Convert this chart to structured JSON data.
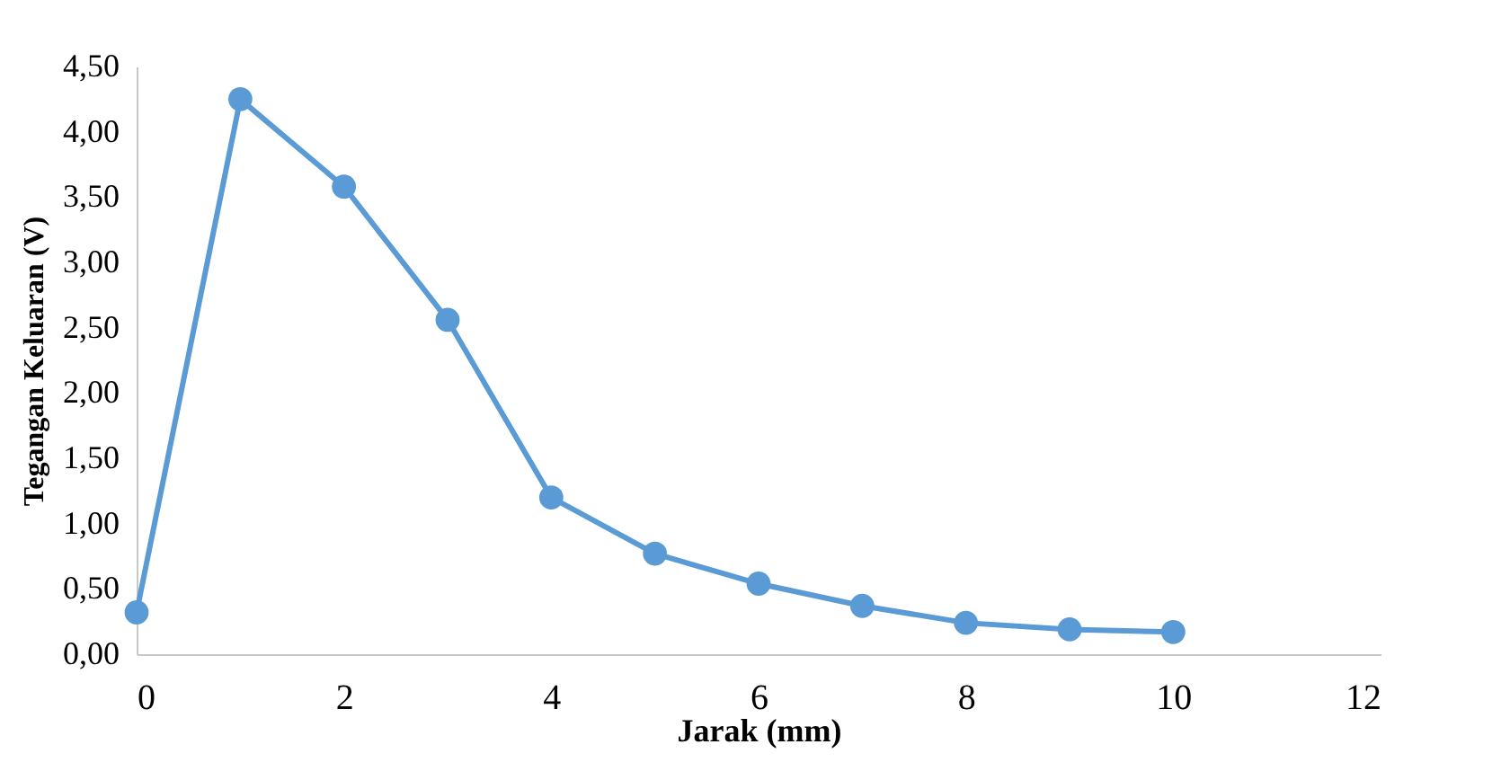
{
  "chart_data": {
    "type": "line",
    "xlabel": "Jarak (mm)",
    "ylabel": "Tegangan Keluaran (V)",
    "x": [
      0,
      1,
      2,
      3,
      4,
      5,
      6,
      7,
      8,
      9,
      10
    ],
    "series": [
      {
        "color": "#5b9bd5",
        "values": [
          0.32,
          4.25,
          3.58,
          2.56,
          1.2,
          0.77,
          0.54,
          0.37,
          0.24,
          0.19,
          0.17
        ]
      }
    ],
    "xlim": [
      0,
      12
    ],
    "xticks": [
      0,
      2,
      4,
      6,
      8,
      10,
      12
    ],
    "ylim": [
      0,
      4.5
    ],
    "yticks": [
      {
        "value": 0,
        "label": "0,00"
      },
      {
        "value": 0.5,
        "label": "0,50"
      },
      {
        "value": 1,
        "label": "1,00"
      },
      {
        "value": 1.5,
        "label": "1,50"
      },
      {
        "value": 2,
        "label": "2,00"
      },
      {
        "value": 2.5,
        "label": "2,50"
      },
      {
        "value": 3,
        "label": "3,00"
      },
      {
        "value": 3.5,
        "label": "3,50"
      },
      {
        "value": 4,
        "label": "4,00"
      },
      {
        "value": 4.5,
        "label": "4,50"
      }
    ],
    "grid": false,
    "marker": "circle",
    "line_style": "solid"
  }
}
